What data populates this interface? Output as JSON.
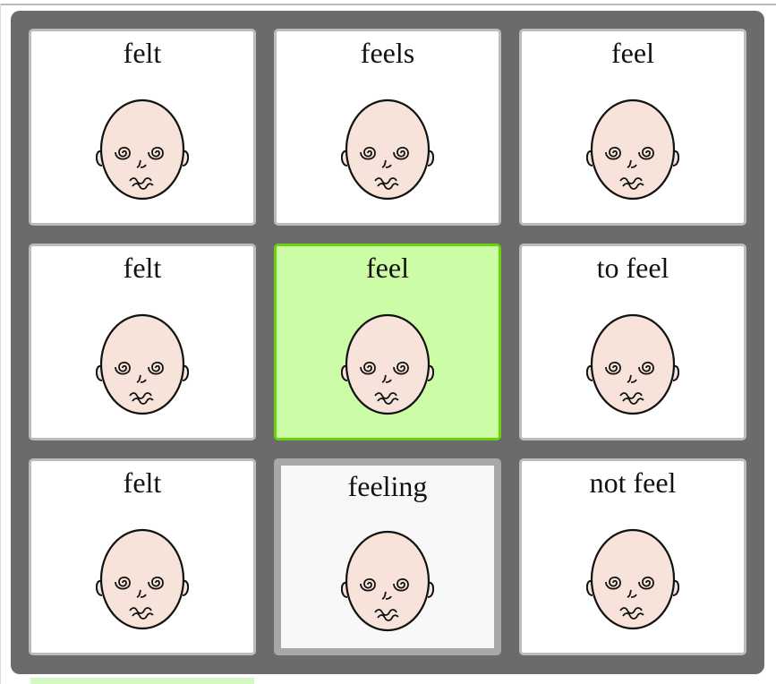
{
  "grid": {
    "cells": [
      {
        "label": "felt",
        "icon": "dizzy-face-icon",
        "state": "normal"
      },
      {
        "label": "feels",
        "icon": "dizzy-face-icon",
        "state": "normal"
      },
      {
        "label": "feel",
        "icon": "dizzy-face-icon",
        "state": "normal"
      },
      {
        "label": "felt",
        "icon": "dizzy-face-icon",
        "state": "normal"
      },
      {
        "label": "feel",
        "icon": "dizzy-face-icon",
        "state": "selected"
      },
      {
        "label": "to feel",
        "icon": "dizzy-face-icon",
        "state": "normal"
      },
      {
        "label": "felt",
        "icon": "dizzy-face-icon",
        "state": "normal"
      },
      {
        "label": "feeling",
        "icon": "dizzy-face-icon",
        "state": "pressed"
      },
      {
        "label": "not feel",
        "icon": "dizzy-face-icon",
        "state": "normal"
      }
    ]
  },
  "colors": {
    "panel": "#6b6b6b",
    "cell_border": "#bcbcbc",
    "selected_fill": "#ccfca6",
    "selected_border": "#6cd10d",
    "face_skin": "#f7e3da"
  }
}
